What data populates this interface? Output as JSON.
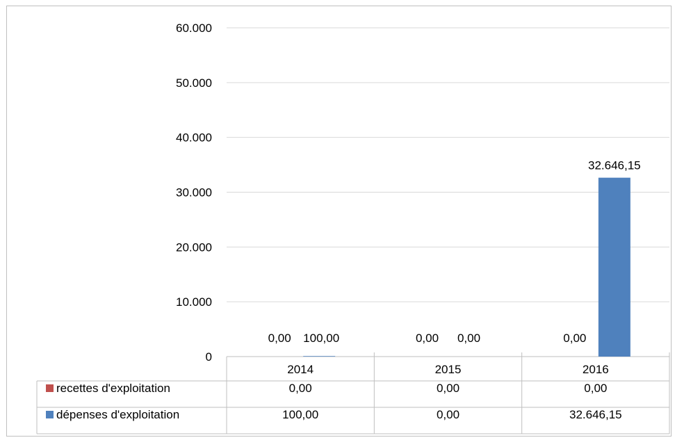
{
  "chart_data": {
    "type": "bar",
    "categories": [
      "2014",
      "2015",
      "2016"
    ],
    "series": [
      {
        "name": "recettes d'exploitation",
        "color": "#c0504d",
        "values": [
          0,
          0,
          0
        ],
        "labels": [
          "0,00",
          "0,00",
          "0,00"
        ]
      },
      {
        "name": "dépenses d'exploitation",
        "color": "#4f81bd",
        "values": [
          100,
          0,
          32646.15
        ],
        "labels": [
          "100,00",
          "0,00",
          "32.646,15"
        ]
      }
    ],
    "ylim": [
      0,
      60000
    ],
    "yticks": [
      0,
      10000,
      20000,
      30000,
      40000,
      50000,
      60000
    ],
    "ytick_labels": [
      "0",
      "10.000",
      "20.000",
      "30.000",
      "40.000",
      "50.000",
      "60.000"
    ],
    "data_table": true,
    "legend": "data-table",
    "gridlines": true
  }
}
